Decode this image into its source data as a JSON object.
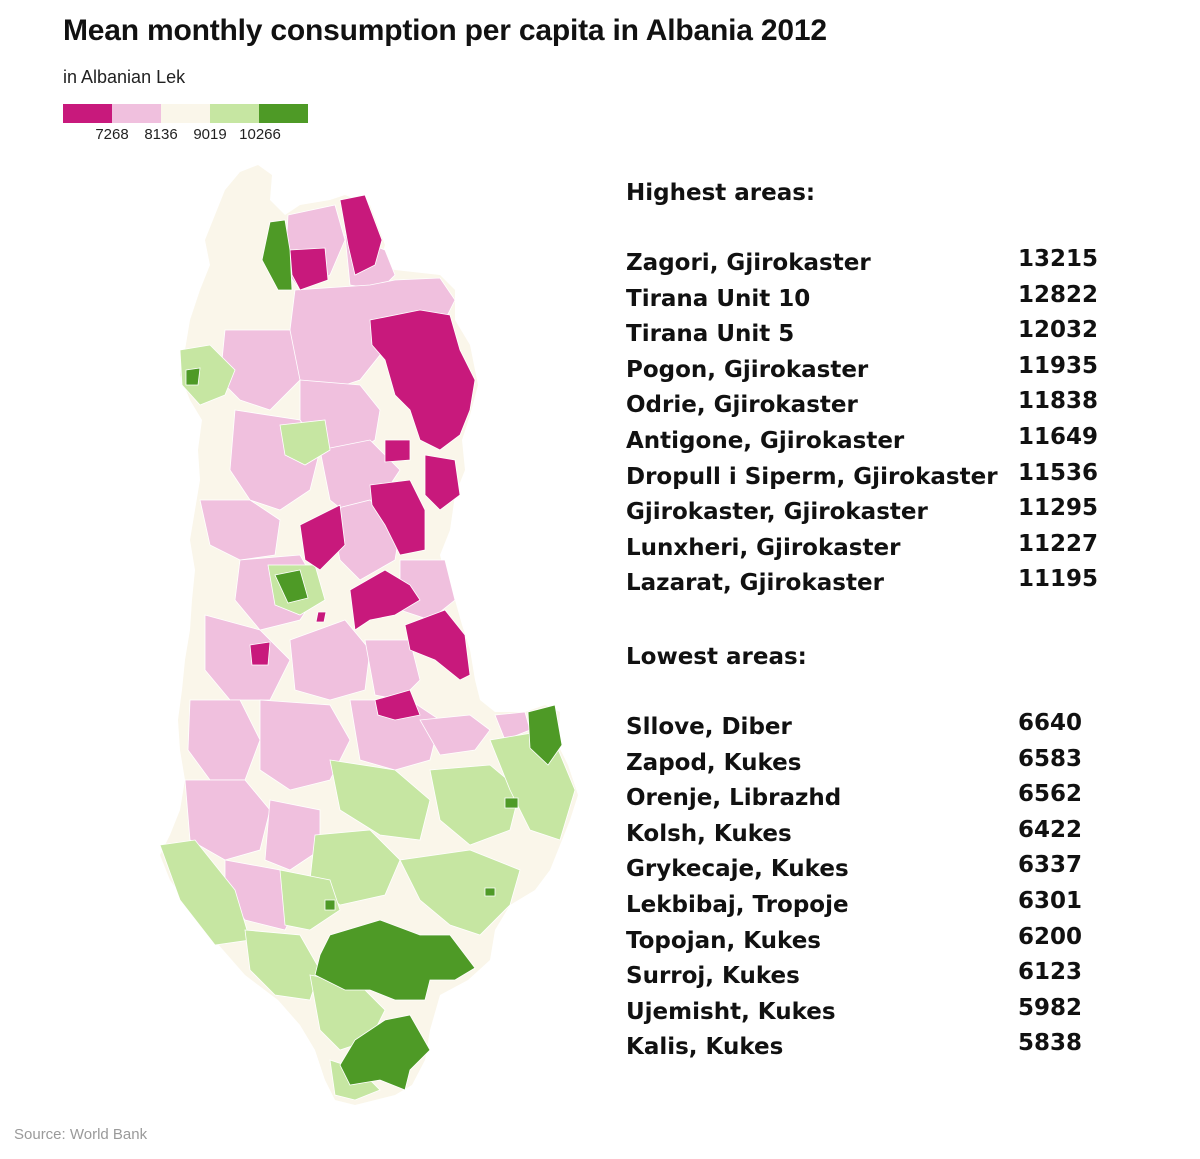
{
  "title": "Mean monthly consumption per capita in Albania 2012",
  "subtitle": "in Albanian Lek",
  "legend": {
    "colors": [
      "#c8197c",
      "#f0c0de",
      "#faf6ea",
      "#c6e6a2",
      "#4e9a26"
    ],
    "thresholds": [
      "7268",
      "8136",
      "9019",
      "10266"
    ]
  },
  "highest": {
    "heading": "Highest areas:",
    "rows": [
      {
        "name": "Zagori, Gjirokaster",
        "value": "13215"
      },
      {
        "name": "Tirana Unit 10",
        "value": "12822"
      },
      {
        "name": "Tirana Unit 5",
        "value": "12032"
      },
      {
        "name": "Pogon, Gjirokaster",
        "value": "11935"
      },
      {
        "name": "Odrie, Gjirokaster",
        "value": "11838"
      },
      {
        "name": "Antigone, Gjirokaster",
        "value": "11649"
      },
      {
        "name": "Dropull i Siperm, Gjirokaster",
        "value": "11536"
      },
      {
        "name": "Gjirokaster, Gjirokaster",
        "value": "11295"
      },
      {
        "name": "Lunxheri, Gjirokaster",
        "value": "11227"
      },
      {
        "name": "Lazarat, Gjirokaster",
        "value": "11195"
      }
    ]
  },
  "lowest": {
    "heading": "Lowest areas:",
    "rows": [
      {
        "name": "Sllove, Diber",
        "value": "6640"
      },
      {
        "name": "Zapod, Kukes",
        "value": "6583"
      },
      {
        "name": "Orenje, Librazhd",
        "value": "6562"
      },
      {
        "name": "Kolsh, Kukes",
        "value": "6422"
      },
      {
        "name": "Grykecaje, Kukes",
        "value": "6337"
      },
      {
        "name": "Lekbibaj, Tropoje",
        "value": "6301"
      },
      {
        "name": "Topojan, Kukes",
        "value": "6200"
      },
      {
        "name": "Surroj, Kukes",
        "value": "6123"
      },
      {
        "name": "Ujemisht, Kukes",
        "value": "5982"
      },
      {
        "name": "Kalis, Kukes",
        "value": "5838"
      }
    ]
  },
  "source": "Source: World Bank"
}
